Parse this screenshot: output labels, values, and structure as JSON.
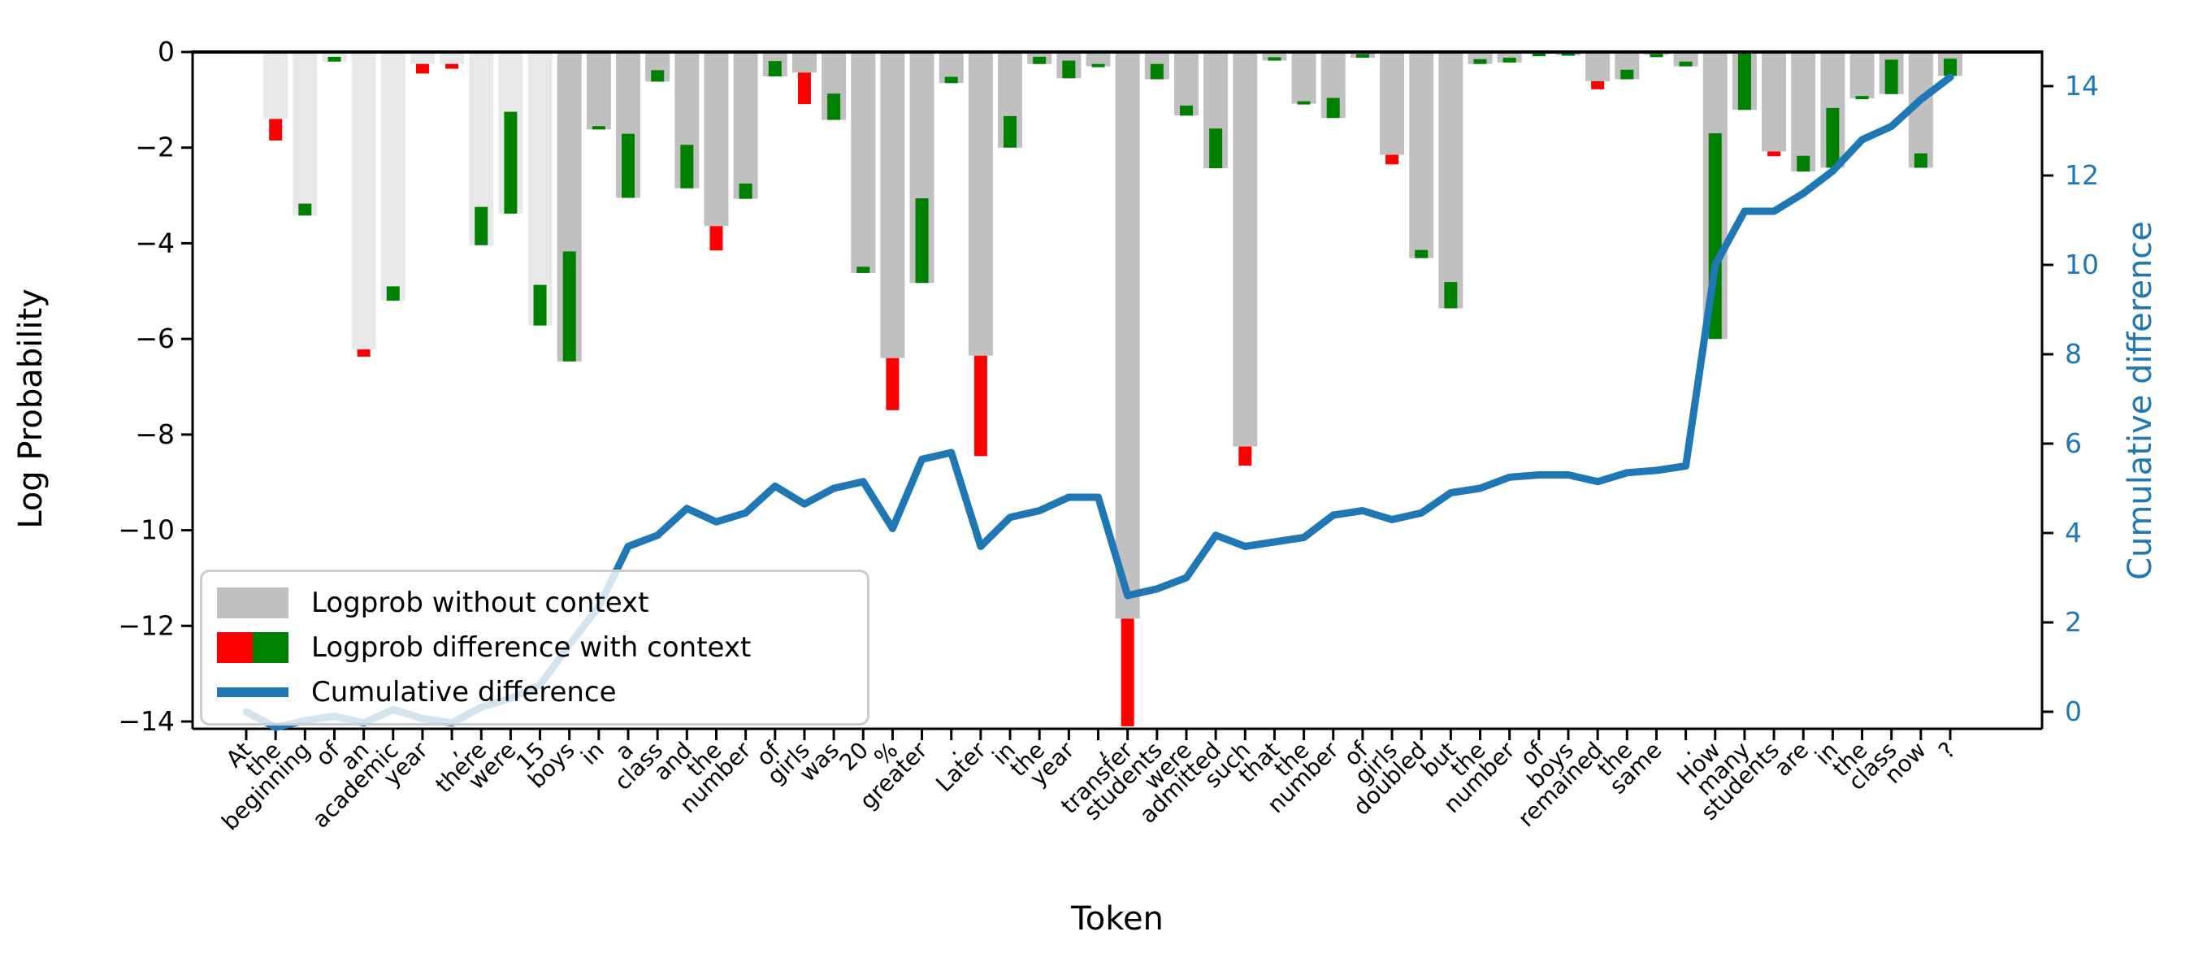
{
  "figure": {
    "background": "#ffffff",
    "xlabel": "Token",
    "ylabel_left": "Log Probability",
    "ylabel_right": "Cumulative difference"
  },
  "legend": {
    "entries": [
      {
        "label": "Logprob without context",
        "swatch": "gray-bar",
        "color": "#c0c0c0"
      },
      {
        "label": "Logprob difference with context",
        "swatch": "red-green-bar",
        "color_negative": "#ff0000",
        "color_positive": "#008000"
      },
      {
        "label": "Cumulative difference",
        "swatch": "blue-line",
        "color": "#1f77b4"
      }
    ]
  },
  "chart_data": {
    "type": "bar",
    "title": "",
    "xlabel": "Token",
    "ylabel": "Log Probability",
    "ylabel_right": "Cumulative difference",
    "ylim_left": [
      -14.3,
      0
    ],
    "ylim_right": [
      -0.4,
      14.8
    ],
    "yticks_left": [
      0,
      -2,
      -4,
      -6,
      -8,
      -10,
      -12,
      -14
    ],
    "yticks_right": [
      0,
      2,
      4,
      6,
      8,
      10,
      12,
      14
    ],
    "grid": false,
    "legend_position": "lower-left",
    "categories": [
      "At",
      "the",
      "beginning",
      "of",
      "an",
      "academic",
      "year",
      ",",
      "there",
      "were",
      "15",
      "boys",
      "in",
      "a",
      "class",
      "and",
      "the",
      "number",
      "of",
      "girls",
      "was",
      "20",
      "%",
      "greater",
      ".",
      "Later",
      "in",
      "the",
      "year",
      ",",
      "transfer",
      "students",
      "were",
      "admitted",
      "such",
      "that",
      "the",
      "number",
      "of",
      "girls",
      "doubled",
      "but",
      "the",
      "number",
      "of",
      "boys",
      "remained",
      "the",
      "same",
      ".",
      "How",
      "many",
      "students",
      "are",
      "in",
      "the",
      "class",
      "now",
      "?"
    ],
    "series": [
      {
        "name": "Logprob without context",
        "type": "bar",
        "color": "#c0c0c0",
        "color_early_tokens": "#e8e8e8",
        "early_token_count": 11,
        "values": [
          -0.04,
          -1.4,
          -3.42,
          -0.2,
          -6.22,
          -5.2,
          -0.25,
          -0.25,
          -4.04,
          -3.38,
          -5.72,
          -6.47,
          -1.62,
          -3.05,
          -0.62,
          -2.85,
          -3.64,
          -3.07,
          -0.51,
          -0.43,
          -1.42,
          -4.62,
          -6.4,
          -4.83,
          -0.65,
          -6.35,
          -2.0,
          -0.25,
          -0.55,
          -0.3,
          -11.85,
          -0.57,
          -1.33,
          -2.43,
          -8.25,
          -0.18,
          -1.08,
          -1.38,
          -0.12,
          -2.15,
          -4.31,
          -5.36,
          -0.25,
          -0.22,
          -0.04,
          -0.07,
          -0.61,
          -0.57,
          -0.06,
          -0.3,
          -6.0,
          -1.21,
          -2.08,
          -2.5,
          -2.42,
          -0.97,
          -0.88,
          -2.42,
          -0.5
        ]
      },
      {
        "name": "Logprob difference with context",
        "type": "bar",
        "color_positive": "#008000",
        "color_negative": "#ff0000",
        "values": [
          0.0,
          -0.45,
          0.25,
          0.1,
          -0.15,
          0.3,
          -0.2,
          -0.1,
          0.8,
          2.13,
          0.85,
          2.3,
          0.07,
          1.34,
          0.24,
          0.91,
          -0.51,
          0.32,
          0.32,
          -0.66,
          0.55,
          0.13,
          -1.09,
          1.77,
          0.13,
          -2.1,
          0.66,
          0.15,
          0.37,
          0.05,
          -2.25,
          0.32,
          0.21,
          0.83,
          -0.4,
          0.07,
          0.05,
          0.42,
          0.08,
          -0.2,
          0.17,
          0.55,
          0.1,
          0.1,
          0.02,
          0.06,
          -0.17,
          0.2,
          0.02,
          0.1,
          4.3,
          1.18,
          -0.1,
          0.33,
          1.25,
          0.05,
          0.72,
          0.3,
          0.36
        ]
      },
      {
        "name": "Cumulative difference",
        "type": "line",
        "color": "#1f77b4",
        "axis": "right",
        "values": [
          0.0,
          -0.35,
          -0.2,
          -0.1,
          -0.25,
          0.05,
          -0.15,
          -0.25,
          0.1,
          0.3,
          0.6,
          1.5,
          2.35,
          3.7,
          3.95,
          4.55,
          4.25,
          4.45,
          5.05,
          4.65,
          5.0,
          5.15,
          4.1,
          5.65,
          5.8,
          3.7,
          4.35,
          4.5,
          4.8,
          4.8,
          2.6,
          2.75,
          3.0,
          3.95,
          3.7,
          3.8,
          3.9,
          4.4,
          4.5,
          4.3,
          4.45,
          4.9,
          5.0,
          5.25,
          5.3,
          5.3,
          5.15,
          5.35,
          5.4,
          5.5,
          10.0,
          11.2,
          11.2,
          11.6,
          12.1,
          12.8,
          13.1,
          13.7,
          14.2
        ]
      }
    ]
  }
}
